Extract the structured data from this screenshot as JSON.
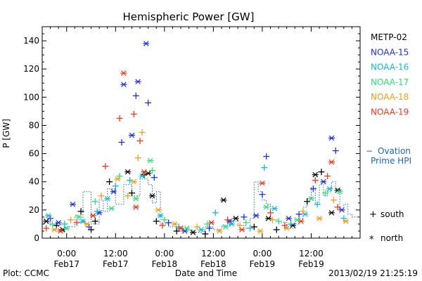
{
  "chart_data": {
    "type": "scatter",
    "title": "Hemispheric Power [GW]",
    "ylabel": "P [GW]",
    "xlabel": "Date and Time",
    "ylim": [
      0,
      150
    ],
    "yticks": [
      0,
      20,
      40,
      60,
      80,
      100,
      120,
      140
    ],
    "x_unit": "hours since 2013-02-16 18:00 UT",
    "xlim": [
      0,
      78
    ],
    "xticks": [
      {
        "t": 6,
        "time": "0:00",
        "date": "Feb17"
      },
      {
        "t": 18,
        "time": "12:00",
        "date": "Feb17"
      },
      {
        "t": 30,
        "time": "0:00",
        "date": "Feb18"
      },
      {
        "t": 42,
        "time": "12:00",
        "date": "Feb18"
      },
      {
        "t": 54,
        "time": "0:00",
        "date": "Feb19"
      },
      {
        "t": 66,
        "time": "12:00",
        "date": "Feb19"
      }
    ],
    "legend_position": "right",
    "series": [
      {
        "name": "METP-02",
        "color": "#000000",
        "points": [
          [
            1.0,
            12,
            "x"
          ],
          [
            3.5,
            9,
            "+"
          ],
          [
            5.0,
            6,
            "x"
          ],
          [
            9.5,
            19,
            "+"
          ],
          [
            12.0,
            6,
            "+"
          ],
          [
            13.0,
            12,
            "+"
          ],
          [
            16.5,
            40,
            "+"
          ],
          [
            21.0,
            47,
            "x"
          ],
          [
            22.0,
            32,
            "+"
          ],
          [
            25.0,
            45,
            "+"
          ],
          [
            26.0,
            46,
            "x"
          ],
          [
            27.0,
            30,
            "x"
          ],
          [
            28.0,
            12,
            "+"
          ],
          [
            33.0,
            5,
            "+"
          ],
          [
            37.0,
            4,
            "x"
          ],
          [
            40.0,
            3,
            "+"
          ],
          [
            44.5,
            27,
            "x"
          ],
          [
            47.5,
            14,
            "x"
          ],
          [
            52.0,
            8,
            "+"
          ],
          [
            55.5,
            14,
            "x"
          ],
          [
            57.5,
            6,
            "+"
          ],
          [
            61.5,
            9,
            "x"
          ],
          [
            65.0,
            26,
            "+"
          ],
          [
            67.0,
            45,
            "x"
          ],
          [
            68.5,
            47,
            "+"
          ],
          [
            71.0,
            18,
            "x"
          ],
          [
            72.5,
            34,
            "x"
          ]
        ]
      },
      {
        "name": "NOAA-15",
        "color": "#1f2fd8",
        "points": [
          [
            2.0,
            14,
            "+"
          ],
          [
            4.0,
            11,
            "x"
          ],
          [
            7.5,
            24,
            "x"
          ],
          [
            11.5,
            8,
            "+"
          ],
          [
            14.0,
            18,
            "x"
          ],
          [
            17.5,
            33,
            "x"
          ],
          [
            19.5,
            68,
            "+"
          ],
          [
            20.0,
            109,
            "x"
          ],
          [
            22.0,
            73,
            "x"
          ],
          [
            23.0,
            101,
            "+"
          ],
          [
            23.5,
            111,
            "x"
          ],
          [
            25.5,
            138,
            "x"
          ],
          [
            26.0,
            96,
            "+"
          ],
          [
            27.5,
            43,
            "+"
          ],
          [
            31.0,
            11,
            "+"
          ],
          [
            35.0,
            5,
            "x"
          ],
          [
            41.0,
            7,
            "+"
          ],
          [
            46.0,
            12,
            "x"
          ],
          [
            49.5,
            15,
            "+"
          ],
          [
            52.5,
            16,
            "x"
          ],
          [
            54.0,
            31,
            "+"
          ],
          [
            55.0,
            58,
            "+"
          ],
          [
            60.5,
            14,
            "x"
          ],
          [
            63.0,
            17,
            "+"
          ],
          [
            66.5,
            35,
            "+"
          ],
          [
            69.0,
            40,
            "x"
          ],
          [
            71.0,
            71,
            "x"
          ],
          [
            72.0,
            62,
            "+"
          ],
          [
            73.5,
            20,
            "x"
          ]
        ]
      },
      {
        "name": "NOAA-16",
        "color": "#12b8d6",
        "points": [
          [
            1.5,
            16,
            "x"
          ],
          [
            5.5,
            10,
            "+"
          ],
          [
            10.0,
            12,
            "x"
          ],
          [
            13.5,
            19,
            "+"
          ],
          [
            16.0,
            28,
            "x"
          ],
          [
            18.0,
            37,
            "+"
          ],
          [
            21.5,
            41,
            "+"
          ],
          [
            24.5,
            44,
            "x"
          ],
          [
            29.0,
            16,
            "x"
          ],
          [
            33.5,
            8,
            "+"
          ],
          [
            39.0,
            6,
            "x"
          ],
          [
            42.5,
            18,
            "+"
          ],
          [
            46.5,
            10,
            "x"
          ],
          [
            51.0,
            7,
            "+"
          ],
          [
            54.5,
            50,
            "+"
          ],
          [
            57.0,
            21,
            "x"
          ],
          [
            61.0,
            10,
            "+"
          ],
          [
            64.5,
            17,
            "x"
          ],
          [
            67.5,
            24,
            "+"
          ],
          [
            70.5,
            35,
            "x"
          ],
          [
            74.0,
            14,
            "+"
          ]
        ]
      },
      {
        "name": "NOAA-17",
        "color": "#2ee07a",
        "points": [
          [
            2.5,
            10,
            "+"
          ],
          [
            6.0,
            7,
            "x"
          ],
          [
            9.0,
            15,
            "x"
          ],
          [
            13.0,
            26,
            "+"
          ],
          [
            17.0,
            21,
            "x"
          ],
          [
            19.0,
            44,
            "+"
          ],
          [
            23.0,
            28,
            "x"
          ],
          [
            26.5,
            55,
            "x"
          ],
          [
            27.0,
            48,
            "+"
          ],
          [
            30.0,
            13,
            "+"
          ],
          [
            35.5,
            7,
            "x"
          ],
          [
            40.5,
            10,
            "+"
          ],
          [
            45.0,
            8,
            "x"
          ],
          [
            50.0,
            11,
            "+"
          ],
          [
            55.0,
            22,
            "x"
          ],
          [
            58.0,
            12,
            "+"
          ],
          [
            62.5,
            13,
            "x"
          ],
          [
            66.0,
            28,
            "x"
          ],
          [
            69.5,
            32,
            "+"
          ],
          [
            73.0,
            33,
            "x"
          ]
        ]
      },
      {
        "name": "NOAA-18",
        "color": "#f39c1a",
        "points": [
          [
            3.0,
            6,
            "x"
          ],
          [
            7.0,
            13,
            "+"
          ],
          [
            11.0,
            10,
            "x"
          ],
          [
            14.5,
            30,
            "+"
          ],
          [
            18.5,
            42,
            "x"
          ],
          [
            21.0,
            30,
            "+"
          ],
          [
            22.5,
            40,
            "x"
          ],
          [
            23.5,
            57,
            "+"
          ],
          [
            24.5,
            75,
            "+"
          ],
          [
            28.5,
            20,
            "x"
          ],
          [
            32.5,
            10,
            "x"
          ],
          [
            38.0,
            8,
            "+"
          ],
          [
            43.5,
            5,
            "x"
          ],
          [
            48.5,
            9,
            "+"
          ],
          [
            53.5,
            5,
            "x"
          ],
          [
            56.5,
            13,
            "+"
          ],
          [
            60.0,
            7,
            "x"
          ],
          [
            64.0,
            19,
            "+"
          ],
          [
            68.0,
            14,
            "x"
          ],
          [
            71.5,
            27,
            "+"
          ],
          [
            74.5,
            12,
            "x"
          ]
        ]
      },
      {
        "name": "NOAA-19",
        "color": "#e83a1c",
        "points": [
          [
            1.0,
            7,
            "+"
          ],
          [
            4.5,
            5,
            "x"
          ],
          [
            8.5,
            11,
            "+"
          ],
          [
            12.5,
            16,
            "x"
          ],
          [
            15.5,
            51,
            "+"
          ],
          [
            19.0,
            85,
            "+"
          ],
          [
            20.0,
            117,
            "x"
          ],
          [
            22.5,
            88,
            "+"
          ],
          [
            23.0,
            22,
            "x"
          ],
          [
            24.0,
            69,
            "+"
          ],
          [
            25.0,
            47,
            "x"
          ],
          [
            29.5,
            9,
            "+"
          ],
          [
            34.0,
            7,
            "x"
          ],
          [
            41.5,
            11,
            "x"
          ],
          [
            45.5,
            13,
            "+"
          ],
          [
            49.0,
            6,
            "x"
          ],
          [
            54.0,
            39,
            "x"
          ],
          [
            56.0,
            18,
            "+"
          ],
          [
            59.5,
            9,
            "+"
          ],
          [
            63.5,
            12,
            "x"
          ],
          [
            67.0,
            41,
            "+"
          ],
          [
            70.0,
            44,
            "+"
          ],
          [
            71.0,
            54,
            "x"
          ],
          [
            72.5,
            22,
            "+"
          ]
        ]
      }
    ],
    "hpi_step": [
      [
        0,
        11
      ],
      [
        2,
        9
      ],
      [
        4,
        6
      ],
      [
        6,
        8
      ],
      [
        8,
        16
      ],
      [
        9,
        11
      ],
      [
        10,
        33
      ],
      [
        12,
        10
      ],
      [
        14,
        27
      ],
      [
        15,
        19
      ],
      [
        16,
        35
      ],
      [
        18,
        24
      ],
      [
        20,
        38
      ],
      [
        22,
        30
      ],
      [
        24,
        42
      ],
      [
        26,
        38
      ],
      [
        27,
        25
      ],
      [
        28,
        33
      ],
      [
        29,
        10
      ],
      [
        31,
        8
      ],
      [
        33,
        5
      ],
      [
        35,
        6
      ],
      [
        37,
        4
      ],
      [
        39,
        5
      ],
      [
        40,
        8
      ],
      [
        42,
        6
      ],
      [
        44,
        9
      ],
      [
        46,
        12
      ],
      [
        48,
        9
      ],
      [
        50,
        7
      ],
      [
        51,
        14
      ],
      [
        52,
        40
      ],
      [
        53,
        33
      ],
      [
        54,
        27
      ],
      [
        55,
        24
      ],
      [
        56,
        13
      ],
      [
        58,
        11
      ],
      [
        60,
        7
      ],
      [
        62,
        10
      ],
      [
        63,
        14
      ],
      [
        64,
        22
      ],
      [
        65,
        28
      ],
      [
        66,
        36
      ],
      [
        67,
        24
      ],
      [
        68,
        38
      ],
      [
        69,
        30
      ],
      [
        70,
        33
      ],
      [
        71,
        40
      ],
      [
        72,
        35
      ],
      [
        73,
        20
      ],
      [
        74,
        24
      ],
      [
        75,
        17
      ],
      [
        76,
        15
      ],
      [
        78,
        15
      ]
    ],
    "legend": {
      "labels": [
        "METP-02",
        "NOAA-15",
        "NOAA-16",
        "NOAA-17",
        "NOAA-18",
        "NOAA-19"
      ],
      "hpi_dash": "−",
      "hpi_label_line1": "Ovation",
      "hpi_label_line2": "Prime HPI",
      "south_label": "south",
      "north_label": "north",
      "south_symbol": "+",
      "north_symbol": "*"
    },
    "footer": {
      "plot_label": "Plot: CCMC",
      "timestamp": "2013/02/19 21:25:19"
    }
  }
}
